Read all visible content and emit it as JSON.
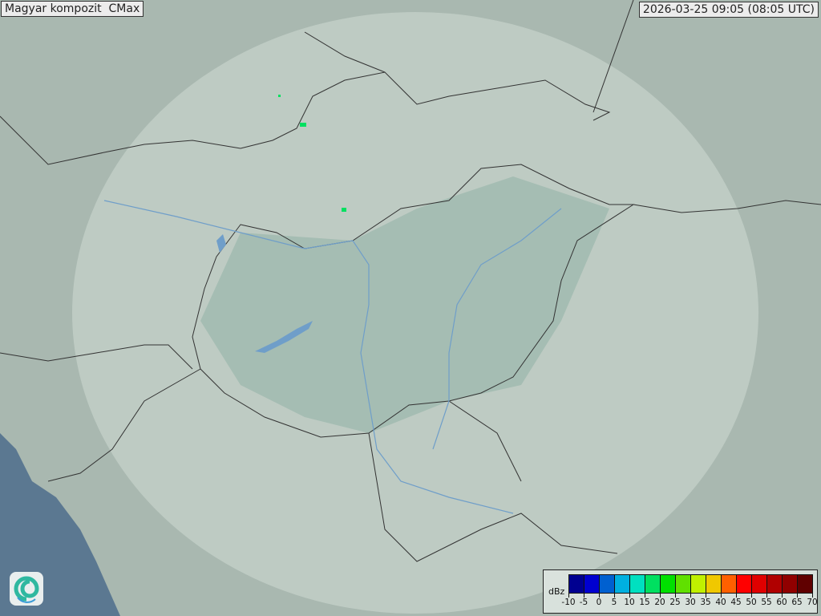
{
  "header": {
    "title": "Magyar kompozit  CMax",
    "timestamp": "2026-03-25 09:05 (08:05 UTC)"
  },
  "map": {
    "base_color": "#a9b8b0",
    "coverage_color": "#d6e2dc",
    "hungary_color": "#8fb3a6",
    "sea_color": "#5b7891",
    "water_color": "#6f9ec9",
    "border_color": "#333333",
    "echo_color": "#00e060"
  },
  "legend": {
    "unit": "dBz",
    "colors": [
      "#000090",
      "#0000d0",
      "#0060d0",
      "#00b0e0",
      "#00e0c0",
      "#00e060",
      "#00e000",
      "#60e000",
      "#c0f000",
      "#f0c800",
      "#ff6000",
      "#ff0000",
      "#e00000",
      "#b00000",
      "#900000",
      "#600000"
    ],
    "ticks": [
      "-10",
      "-5",
      "0",
      "5",
      "10",
      "15",
      "20",
      "25",
      "30",
      "35",
      "40",
      "45",
      "50",
      "55",
      "60",
      "65",
      "70"
    ]
  },
  "logo": {
    "icon": "swirl-logo-icon"
  }
}
